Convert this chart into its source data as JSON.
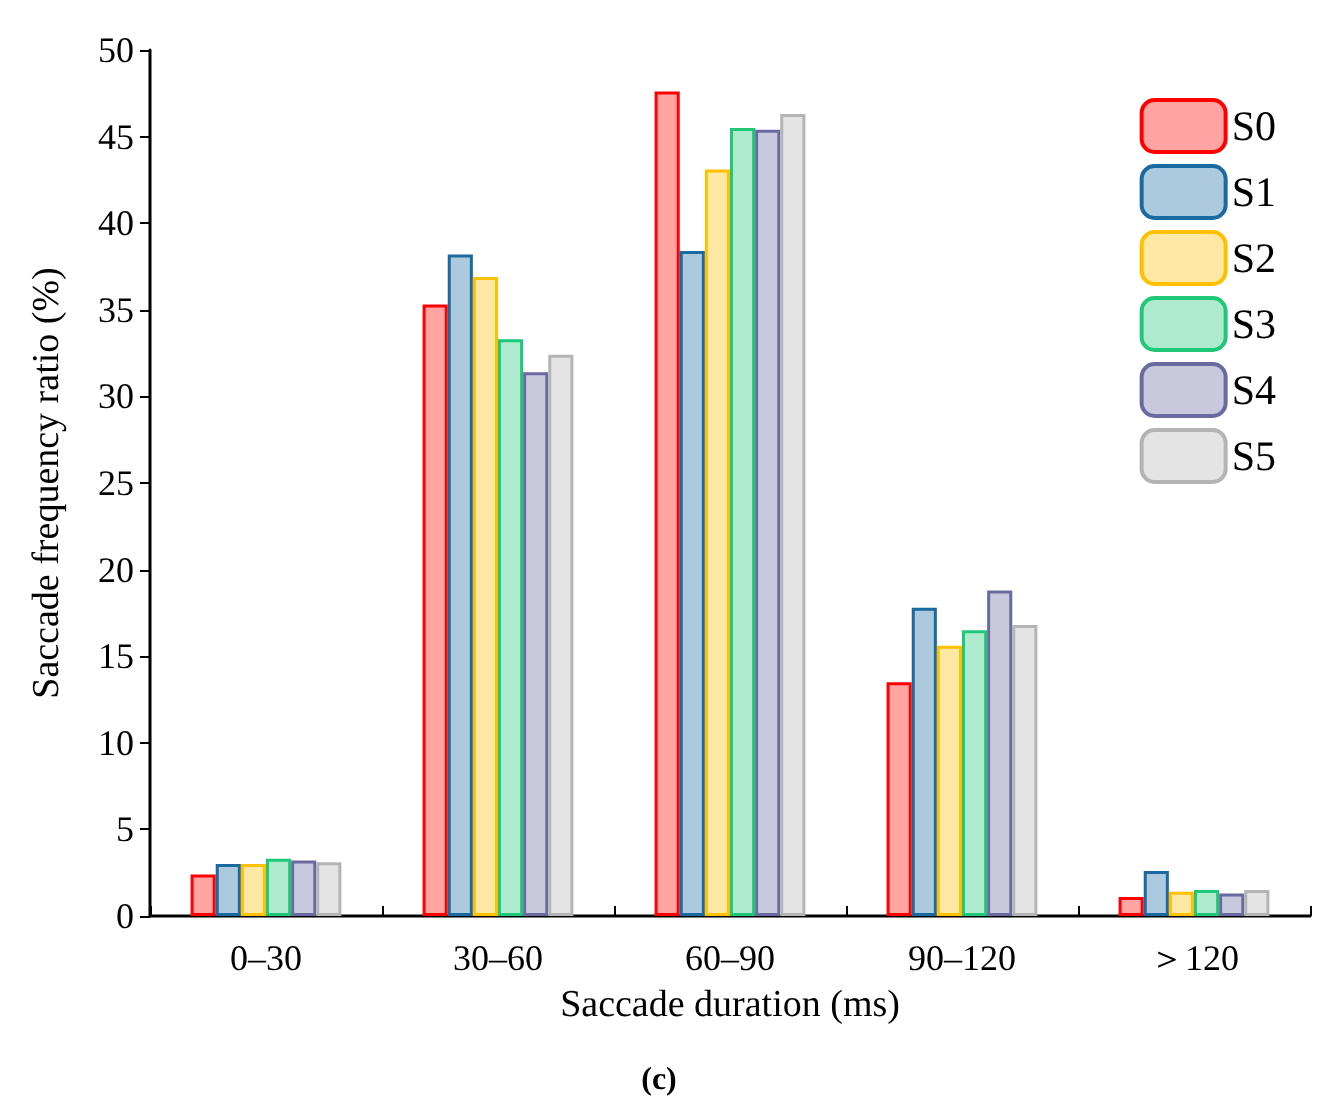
{
  "chart_data": {
    "type": "bar",
    "xlabel": "Saccade duration (ms)",
    "ylabel": "Saccade frequency ratio (%)",
    "annotations": [
      "(c)"
    ],
    "categories": [
      "0–30",
      "30–60",
      "60–90",
      "90–120",
      "＞120"
    ],
    "series": [
      {
        "name": "S0",
        "color": "#ff0000",
        "values": [
          2.4,
          35.3,
          47.6,
          13.5,
          1.1
        ]
      },
      {
        "name": "S1",
        "color": "#1a6aa0",
        "values": [
          3.0,
          38.2,
          38.4,
          17.8,
          2.6
        ]
      },
      {
        "name": "S2",
        "color": "#ffc000",
        "values": [
          3.0,
          36.9,
          43.1,
          15.6,
          1.4
        ]
      },
      {
        "name": "S3",
        "color": "#1ec878",
        "values": [
          3.3,
          33.3,
          45.5,
          16.5,
          1.5
        ]
      },
      {
        "name": "S4",
        "color": "#6a6aa0",
        "values": [
          3.2,
          31.4,
          45.4,
          18.8,
          1.3
        ]
      },
      {
        "name": "S5",
        "color": "#b4b4b4",
        "values": [
          3.1,
          32.4,
          46.3,
          16.8,
          1.5
        ]
      }
    ],
    "ylim": [
      0,
      50
    ],
    "yticks": [
      0,
      5,
      10,
      15,
      20,
      25,
      30,
      35,
      40,
      45,
      50
    ],
    "grid": false,
    "legend": "top right"
  }
}
